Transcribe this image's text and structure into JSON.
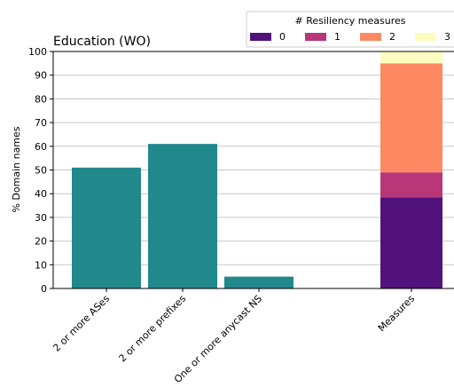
{
  "chart_data": {
    "type": "bar",
    "title": "Education (WO)",
    "ylabel": "% Domain names",
    "xlabel": "",
    "ylim": [
      0,
      100
    ],
    "yticks": [
      0,
      10,
      20,
      30,
      40,
      50,
      60,
      70,
      80,
      90,
      100
    ],
    "grid": "horizontal",
    "categories": [
      "2 or more ASes",
      "2 or more prefixes",
      "One or more anycast NS",
      "Measures"
    ],
    "bars": [
      {
        "category": "2 or more ASes",
        "value": 51,
        "color": "#21888c"
      },
      {
        "category": "2 or more prefixes",
        "value": 61,
        "color": "#21888c"
      },
      {
        "category": "One or more anycast NS",
        "value": 5,
        "color": "#21888c"
      }
    ],
    "stacked": {
      "category": "Measures",
      "segments": [
        {
          "name": "0",
          "value": 38.5,
          "color": "#51127c"
        },
        {
          "name": "1",
          "value": 10.5,
          "color": "#b73779"
        },
        {
          "name": "2",
          "value": 46,
          "color": "#fc8961"
        },
        {
          "name": "3",
          "value": 5,
          "color": "#fcfdbf"
        }
      ]
    },
    "legend": {
      "title": "# Resiliency measures",
      "placement": "top-right",
      "entries": [
        "0",
        "1",
        "2",
        "3"
      ]
    }
  }
}
